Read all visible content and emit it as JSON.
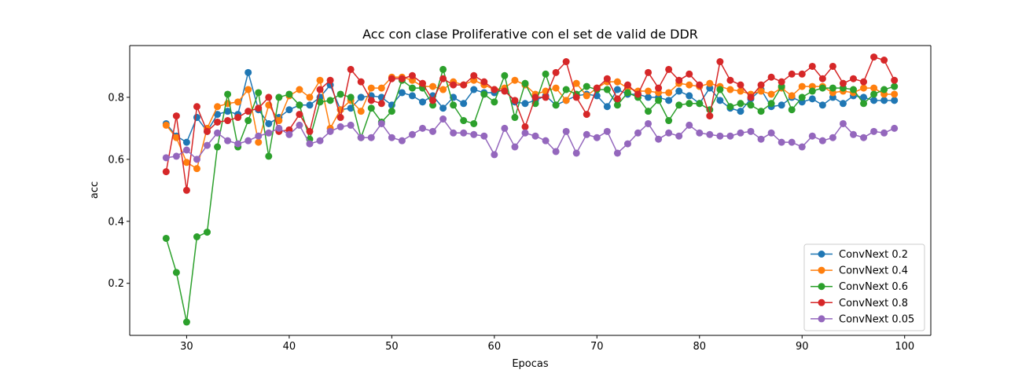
{
  "chart_data": {
    "type": "line",
    "title": "Acc con clase Proliferative con el set de valid de DDR",
    "xlabel": "Epocas",
    "ylabel": "acc",
    "xlim": [
      24.45,
      102.55
    ],
    "ylim": [
      0.032,
      0.967
    ],
    "xticks": [
      30,
      40,
      50,
      60,
      70,
      80,
      90,
      100
    ],
    "yticks": [
      0.2,
      0.4,
      0.6,
      0.8
    ],
    "ytick_labels": [
      "0.2",
      "0.4",
      "0.6",
      "0.8"
    ],
    "legend_position": "lower-right",
    "grid": false,
    "x": [
      28,
      29,
      30,
      31,
      32,
      33,
      34,
      35,
      36,
      37,
      38,
      39,
      40,
      41,
      42,
      43,
      44,
      45,
      46,
      47,
      48,
      49,
      50,
      51,
      52,
      53,
      54,
      55,
      56,
      57,
      58,
      59,
      60,
      61,
      62,
      63,
      64,
      65,
      66,
      67,
      68,
      69,
      70,
      71,
      72,
      73,
      74,
      75,
      76,
      77,
      78,
      79,
      80,
      81,
      82,
      83,
      84,
      85,
      86,
      87,
      88,
      89,
      90,
      91,
      92,
      93,
      94,
      95,
      96,
      97,
      98,
      99
    ],
    "series": [
      {
        "name": "ConvNext 0.2",
        "color": "#1f77b4",
        "values": [
          0.715,
          0.675,
          0.655,
          0.735,
          0.69,
          0.745,
          0.755,
          0.745,
          0.88,
          0.76,
          0.715,
          0.735,
          0.76,
          0.775,
          0.775,
          0.8,
          0.84,
          0.76,
          0.765,
          0.8,
          0.805,
          0.8,
          0.775,
          0.815,
          0.805,
          0.785,
          0.805,
          0.765,
          0.8,
          0.78,
          0.825,
          0.815,
          0.815,
          0.825,
          0.785,
          0.78,
          0.79,
          0.805,
          0.775,
          0.79,
          0.805,
          0.81,
          0.805,
          0.77,
          0.825,
          0.81,
          0.81,
          0.8,
          0.8,
          0.79,
          0.82,
          0.805,
          0.78,
          0.83,
          0.79,
          0.765,
          0.755,
          0.795,
          0.825,
          0.77,
          0.775,
          0.8,
          0.785,
          0.795,
          0.775,
          0.8,
          0.78,
          0.805,
          0.8,
          0.79,
          0.79,
          0.79
        ]
      },
      {
        "name": "ConvNext 0.4",
        "color": "#ff7f0e",
        "values": [
          0.71,
          0.67,
          0.59,
          0.57,
          0.7,
          0.77,
          0.78,
          0.785,
          0.825,
          0.655,
          0.775,
          0.725,
          0.805,
          0.825,
          0.8,
          0.855,
          0.7,
          0.76,
          0.79,
          0.755,
          0.83,
          0.83,
          0.865,
          0.865,
          0.855,
          0.835,
          0.835,
          0.825,
          0.85,
          0.84,
          0.855,
          0.84,
          0.825,
          0.83,
          0.855,
          0.84,
          0.81,
          0.82,
          0.83,
          0.79,
          0.845,
          0.805,
          0.83,
          0.85,
          0.85,
          0.83,
          0.82,
          0.82,
          0.815,
          0.815,
          0.845,
          0.84,
          0.835,
          0.845,
          0.835,
          0.825,
          0.82,
          0.81,
          0.82,
          0.81,
          0.83,
          0.805,
          0.835,
          0.835,
          0.835,
          0.815,
          0.82,
          0.815,
          0.83,
          0.83,
          0.81,
          0.81
        ]
      },
      {
        "name": "ConvNext 0.6",
        "color": "#2ca02c",
        "values": [
          0.345,
          0.235,
          0.075,
          0.35,
          0.365,
          0.64,
          0.81,
          0.64,
          0.725,
          0.815,
          0.61,
          0.8,
          0.81,
          0.775,
          0.665,
          0.785,
          0.79,
          0.81,
          0.8,
          0.67,
          0.765,
          0.72,
          0.755,
          0.855,
          0.83,
          0.83,
          0.775,
          0.89,
          0.775,
          0.725,
          0.715,
          0.81,
          0.785,
          0.87,
          0.735,
          0.845,
          0.78,
          0.875,
          0.775,
          0.825,
          0.81,
          0.835,
          0.825,
          0.825,
          0.775,
          0.815,
          0.8,
          0.755,
          0.79,
          0.725,
          0.775,
          0.78,
          0.78,
          0.76,
          0.825,
          0.77,
          0.78,
          0.775,
          0.755,
          0.78,
          0.835,
          0.76,
          0.8,
          0.82,
          0.83,
          0.83,
          0.83,
          0.825,
          0.78,
          0.81,
          0.825,
          0.835
        ]
      },
      {
        "name": "ConvNext 0.8",
        "color": "#d62728",
        "values": [
          0.56,
          0.74,
          0.5,
          0.77,
          0.69,
          0.72,
          0.725,
          0.735,
          0.755,
          0.765,
          0.8,
          0.69,
          0.695,
          0.745,
          0.69,
          0.825,
          0.855,
          0.735,
          0.89,
          0.85,
          0.79,
          0.78,
          0.86,
          0.86,
          0.87,
          0.845,
          0.79,
          0.86,
          0.84,
          0.84,
          0.87,
          0.85,
          0.825,
          0.82,
          0.79,
          0.705,
          0.8,
          0.8,
          0.88,
          0.915,
          0.8,
          0.745,
          0.83,
          0.86,
          0.795,
          0.84,
          0.81,
          0.88,
          0.83,
          0.89,
          0.855,
          0.875,
          0.84,
          0.74,
          0.915,
          0.855,
          0.84,
          0.8,
          0.84,
          0.865,
          0.85,
          0.875,
          0.875,
          0.9,
          0.86,
          0.9,
          0.845,
          0.86,
          0.85,
          0.93,
          0.92,
          0.855
        ]
      },
      {
        "name": "ConvNext 0.05",
        "color": "#9467bd",
        "values": [
          0.605,
          0.61,
          0.63,
          0.6,
          0.645,
          0.685,
          0.66,
          0.65,
          0.66,
          0.675,
          0.685,
          0.7,
          0.68,
          0.71,
          0.65,
          0.66,
          0.69,
          0.705,
          0.71,
          0.67,
          0.67,
          0.715,
          0.67,
          0.66,
          0.68,
          0.7,
          0.69,
          0.73,
          0.685,
          0.685,
          0.68,
          0.675,
          0.615,
          0.7,
          0.64,
          0.685,
          0.675,
          0.66,
          0.625,
          0.69,
          0.62,
          0.68,
          0.67,
          0.69,
          0.62,
          0.65,
          0.685,
          0.715,
          0.665,
          0.685,
          0.675,
          0.71,
          0.685,
          0.68,
          0.675,
          0.675,
          0.685,
          0.69,
          0.665,
          0.685,
          0.655,
          0.655,
          0.64,
          0.675,
          0.66,
          0.67,
          0.715,
          0.68,
          0.67,
          0.69,
          0.685,
          0.7
        ]
      }
    ]
  }
}
